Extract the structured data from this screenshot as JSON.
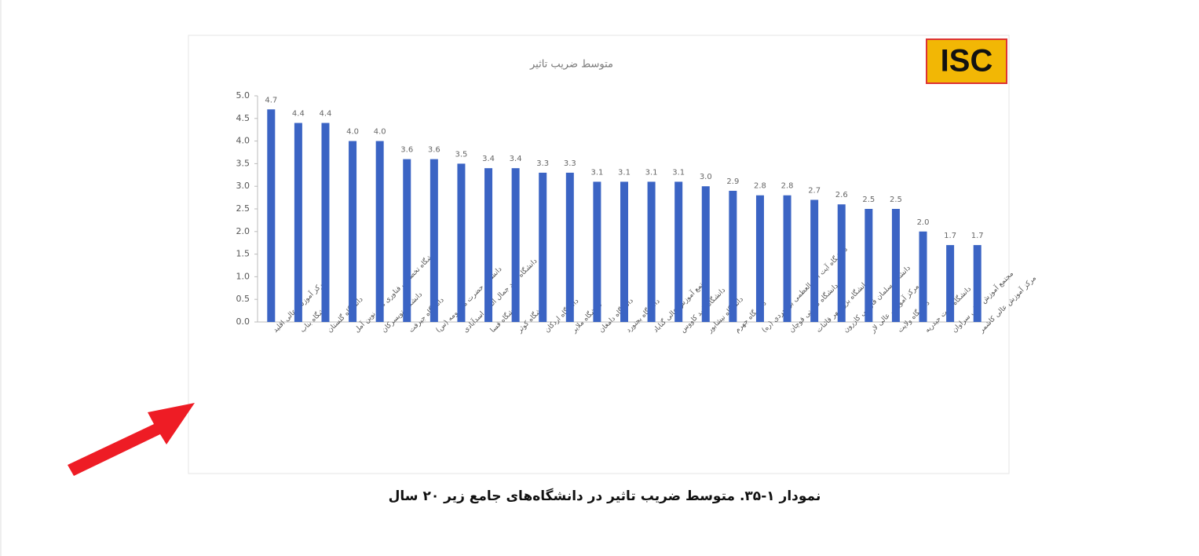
{
  "chart_data": {
    "type": "bar",
    "title": "متوسط ضریب تاثیر",
    "logo": "ISC",
    "categories": [
      "مرکز آموزش عالی اقلید",
      "دانشگاه بناب",
      "دانشگاه گلستان",
      "دانشگاه تخصصی فناوری های نوین آمل",
      "دانشگاه تویسرکان",
      "دانشگاه جیرفت",
      "دانشگاه حضرت معصومه (س)",
      "دانشگاه سید جمال الدین اسدآبادی",
      "دانشگاه فسا",
      "دانشگاه کوثر",
      "دانشگاه اردکان",
      "دانشگاه ملایر",
      "دانشگاه دامغان",
      "دانشگاه بجنورد",
      "مجتمع آموزش عالی گناباد",
      "دانشگاه گنبد کاووس",
      "دانشگاه نیشابور",
      "دانشگاه جهرم",
      "دانشگاه آیت الله العظمی بروجردی (ره)",
      "دانشگاه صنعتی قوچان",
      "دانشگاه بزرگمهر قائنات",
      "دانشگاه سلمان فارسی کازرون",
      "مرکز آموزش عالی لار",
      "دانشگاه ولایت",
      "دانشگاه تربت حیدریه",
      "مجتمع آموزش عالی سراوان",
      "مرکز آموزش عالی کاشمر"
    ],
    "values": [
      4.7,
      4.4,
      4.4,
      4.0,
      4.0,
      3.6,
      3.6,
      3.5,
      3.4,
      3.4,
      3.3,
      3.3,
      3.1,
      3.1,
      3.1,
      3.1,
      3.0,
      2.9,
      2.8,
      2.8,
      2.7,
      2.6,
      2.5,
      2.5,
      2.0,
      1.7,
      1.7
    ],
    "value_labels": [
      "4.7",
      "4.4",
      "4.4",
      "4.0",
      "4.0",
      "3.6",
      "3.6",
      "3.5",
      "3.4",
      "3.4",
      "3.3",
      "3.3",
      "3.1",
      "3.1",
      "3.1",
      "3.1",
      "3.0",
      "2.9",
      "2.8",
      "2.8",
      "2.7",
      "2.6",
      "2.5",
      "2.5",
      "2.0",
      "1.7",
      "1.7"
    ],
    "color": "#3b64c4",
    "ylim": [
      0,
      5
    ],
    "yticks": [
      {
        "value": 0,
        "label": "0.0"
      },
      {
        "value": 0.5,
        "label": "0.5"
      },
      {
        "value": 1,
        "label": "1.0"
      },
      {
        "value": 1.5,
        "label": "1.5"
      },
      {
        "value": 2,
        "label": "2.0"
      },
      {
        "value": 2.5,
        "label": "2.5"
      },
      {
        "value": 3,
        "label": "3.0"
      },
      {
        "value": 3.5,
        "label": "3.5"
      },
      {
        "value": 4,
        "label": "4.0"
      },
      {
        "value": 4.5,
        "label": "4.5"
      },
      {
        "value": 5,
        "label": "5.0"
      }
    ],
    "grid": false
  },
  "caption": "نمودار ۱-۳۵. متوسط ضریب تاثیر در دانشگاه‌های جامع زیر ۲۰ سال"
}
